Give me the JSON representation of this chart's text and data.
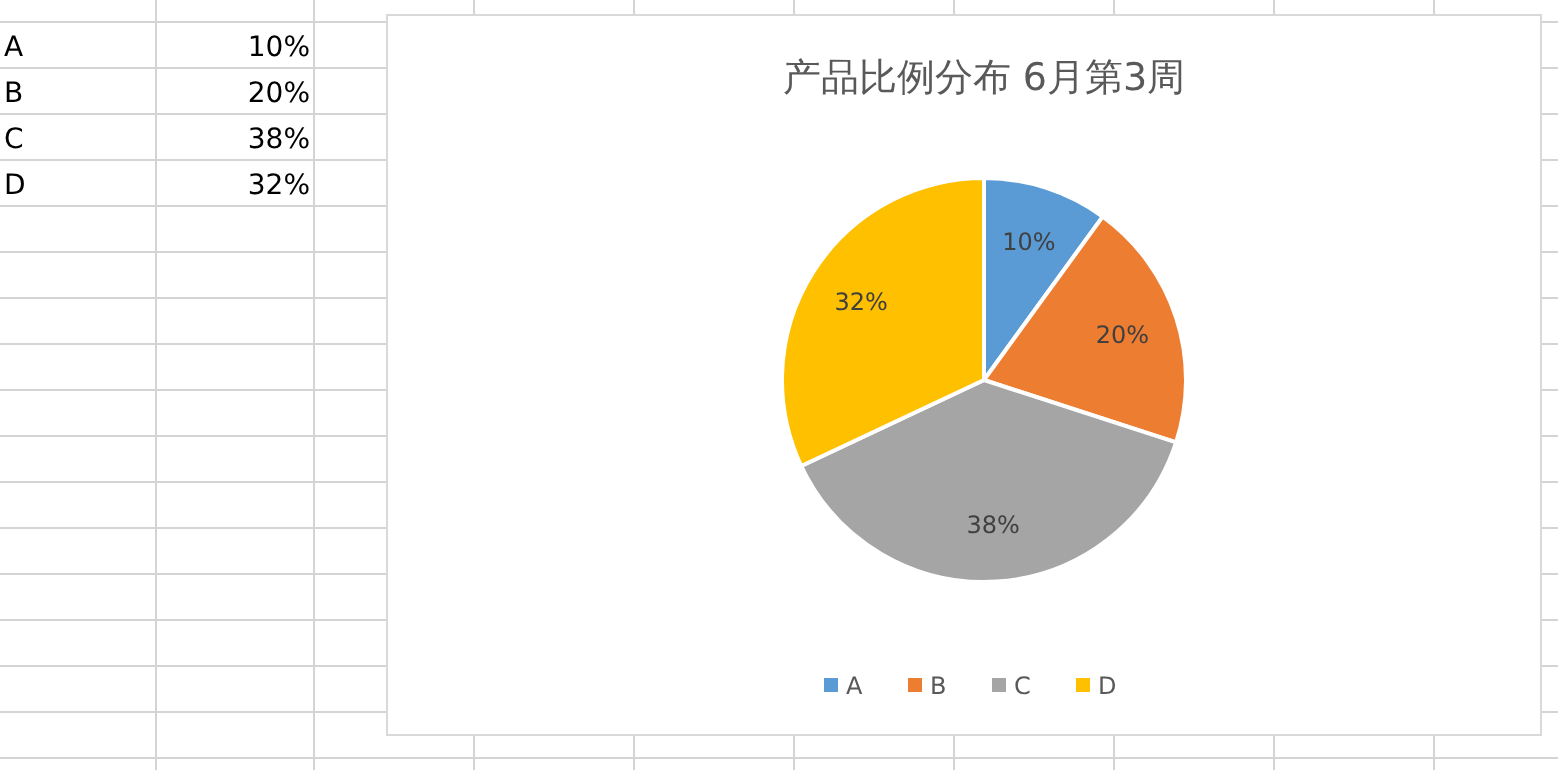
{
  "chart_data": {
    "type": "pie",
    "title": "产品比例分布 6月第3周",
    "categories": [
      "A",
      "B",
      "C",
      "D"
    ],
    "values": [
      10,
      20,
      38,
      32
    ],
    "colors": [
      "#5b9bd5",
      "#ed7d31",
      "#a5a5a5",
      "#ffc000"
    ],
    "value_labels": [
      "10%",
      "20%",
      "38%",
      "32%"
    ],
    "legend": "bottom"
  }
}
